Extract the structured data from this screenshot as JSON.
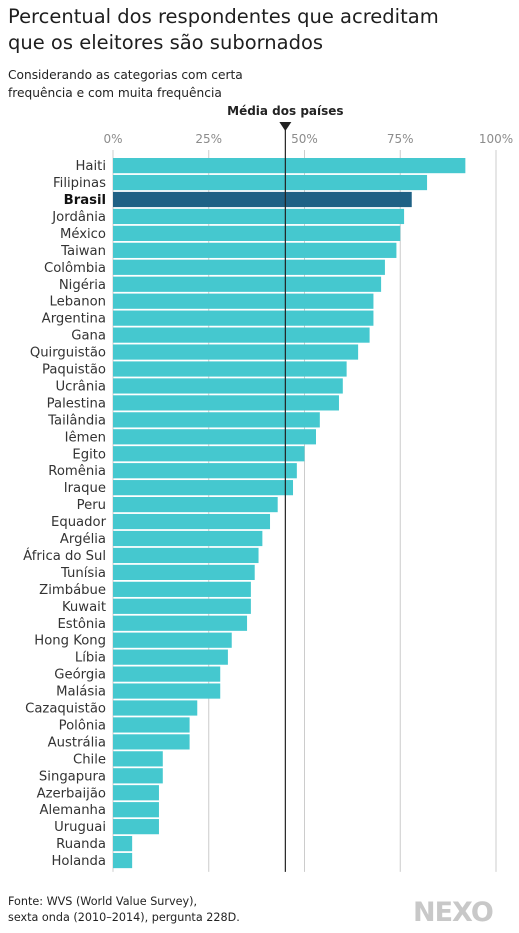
{
  "header": {
    "title_line1": "Percentual dos respondentes que acreditam",
    "title_line2": "que os eleitores são subornados",
    "subtitle_line1": "Considerando as categorias com certa",
    "subtitle_line2": "frequência e com muita frequência"
  },
  "chart_data": {
    "type": "bar",
    "orientation": "horizontal",
    "title": "Percentual dos respondentes que acreditam que os eleitores são subornados",
    "subtitle": "Considerando as categorias com certa frequência e com muita frequência",
    "categories": [
      "Haiti",
      "Filipinas",
      "Brasil",
      "Jordânia",
      "México",
      "Taiwan",
      "Colômbia",
      "Nigéria",
      "Lebanon",
      "Argentina",
      "Gana",
      "Quirguistão",
      "Paquistão",
      "Ucrânia",
      "Palestina",
      "Tailândia",
      "Iêmen",
      "Egito",
      "Romênia",
      "Iraque",
      "Peru",
      "Equador",
      "Argélia",
      "África do Sul",
      "Tunísia",
      "Zimbábue",
      "Kuwait",
      "Estônia",
      "Hong Kong",
      "Líbia",
      "Geórgia",
      "Malásia",
      "Cazaquistão",
      "Polônia",
      "Austrália",
      "Chile",
      "Singapura",
      "Azerbaijão",
      "Alemanha",
      "Uruguai",
      "Ruanda",
      "Holanda"
    ],
    "values": [
      92,
      82,
      78,
      76,
      75,
      74,
      71,
      70,
      68,
      68,
      67,
      64,
      61,
      60,
      59,
      54,
      53,
      50,
      48,
      47,
      43,
      41,
      39,
      38,
      37,
      36,
      36,
      35,
      31,
      30,
      28,
      28,
      22,
      20,
      20,
      13,
      13,
      12,
      12,
      12,
      5,
      5
    ],
    "highlight": "Brasil",
    "xlim": [
      0,
      100
    ],
    "xticks": [
      "0%",
      "25%",
      "50%",
      "75%",
      "100%"
    ],
    "tick_values": [
      0,
      25,
      50,
      75,
      100
    ],
    "reference_line": {
      "label": "Média dos países",
      "value": 45
    },
    "grid": true,
    "colors": {
      "bar": "#45c8cf",
      "highlight": "#1f6185",
      "grid": "#cccccc",
      "reference": "#222222",
      "tick_text": "#8c8c8c",
      "label_text": "#333333"
    }
  },
  "footer": {
    "source_line1": "Fonte: WVS (World Value Survey),",
    "source_line2": "sexta onda (2010–2014), pergunta 228D.",
    "logo": "NEXO"
  }
}
